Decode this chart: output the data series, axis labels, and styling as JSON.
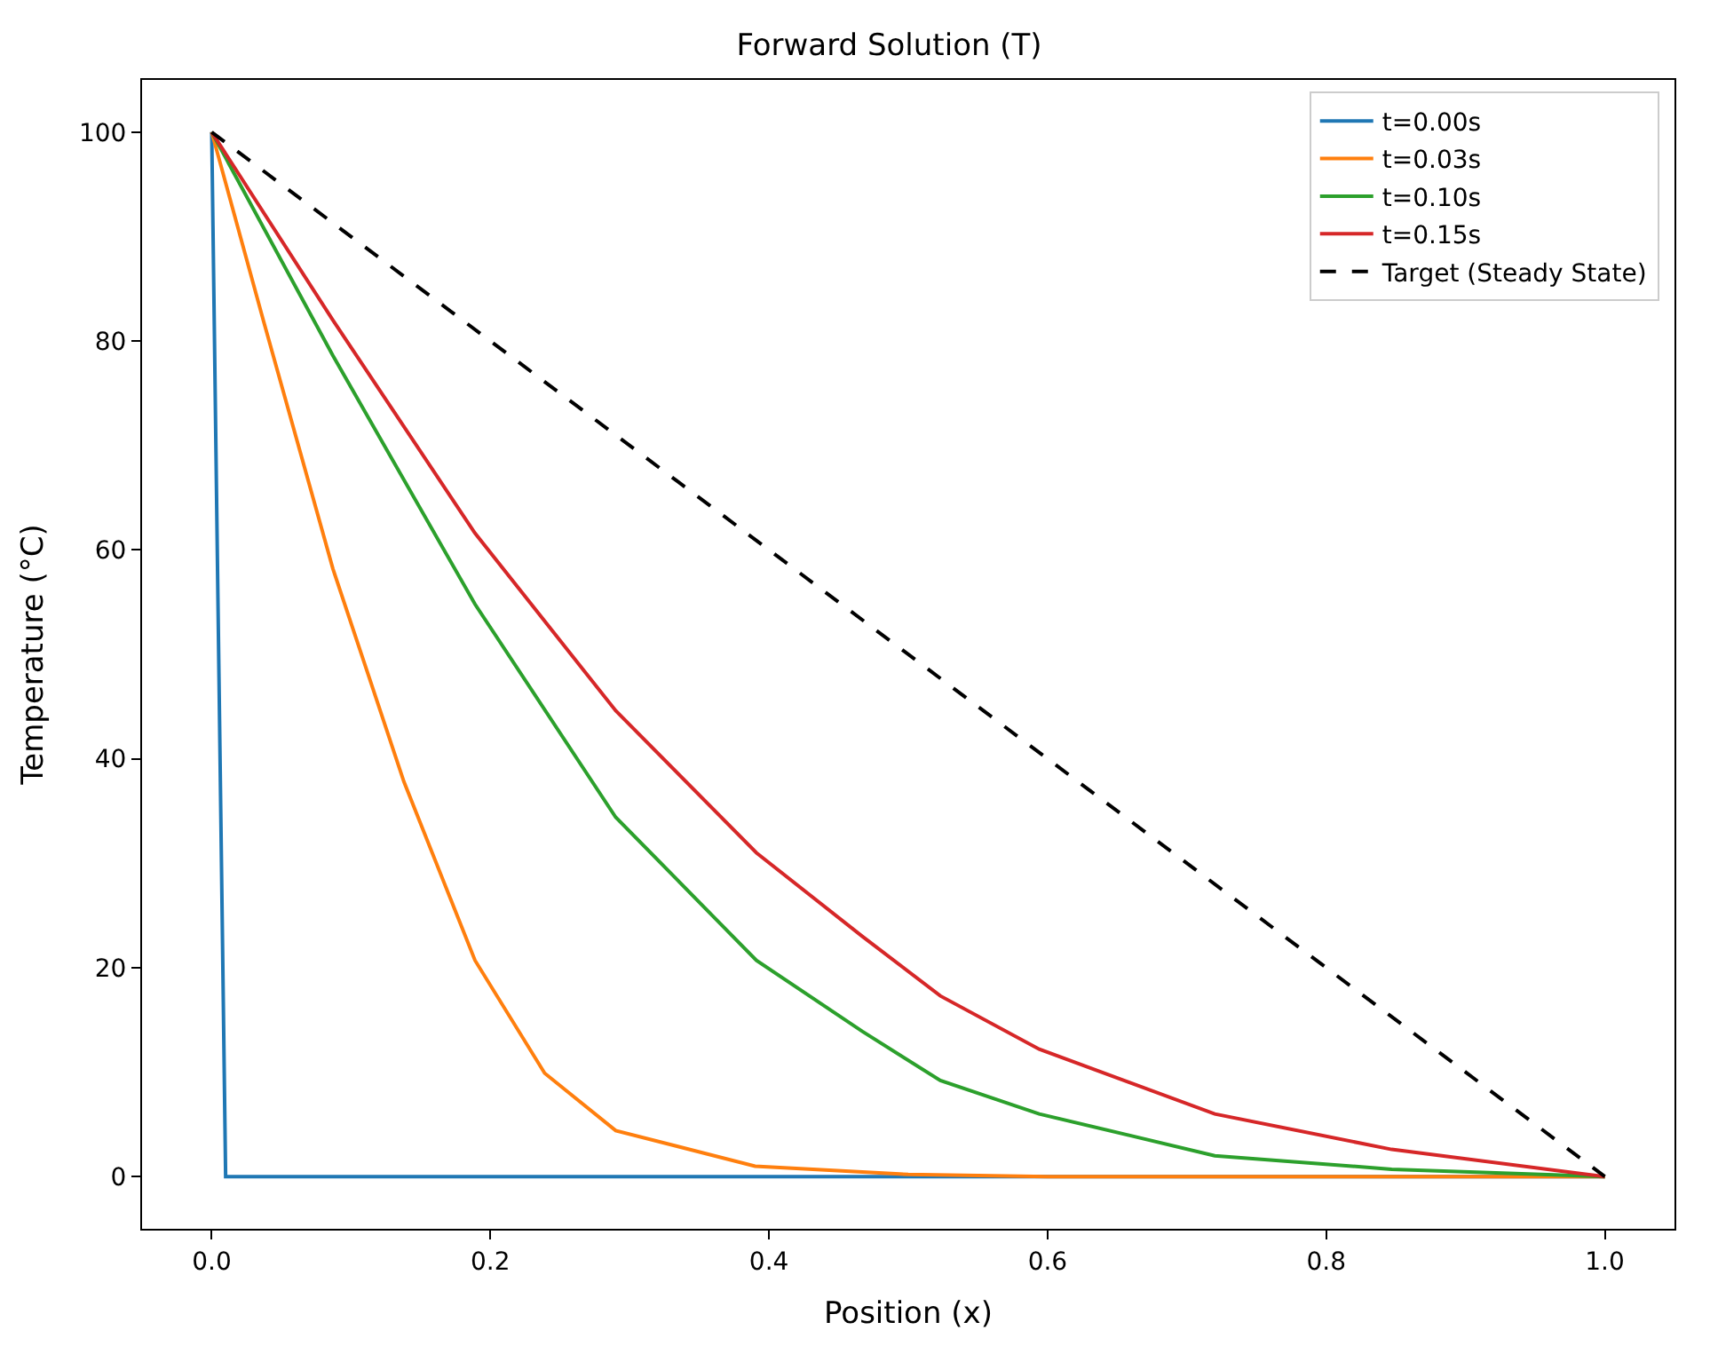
{
  "chart_data": {
    "type": "line",
    "title": "Forward Solution (T)",
    "xlabel": "Position (x)",
    "ylabel": "Temperature (°C)",
    "xlim": [
      -0.05,
      1.05
    ],
    "xticks": [
      {
        "value": 0,
        "label": "0.0"
      },
      {
        "value": 0.2,
        "label": "0.2"
      },
      {
        "value": 0.4,
        "label": "0.4"
      },
      {
        "value": 0.6,
        "label": "0.6"
      },
      {
        "value": 0.8,
        "label": "0.8"
      },
      {
        "value": 1,
        "label": "1.0"
      }
    ],
    "ylim": [
      -5,
      105
    ],
    "yticks": [
      0,
      20,
      40,
      60,
      80,
      100
    ],
    "legend": "top right",
    "marker": "none",
    "series": [
      {
        "name": "t=0.00s",
        "color": "#1f77b4",
        "line_style": "solid",
        "x": [
          0,
          0.01,
          1
        ],
        "values": [
          100,
          0,
          0
        ]
      },
      {
        "name": "t=0.03s",
        "color": "#ff7f0e",
        "line_style": "solid",
        "x": [
          0,
          0.037,
          0.087,
          0.138,
          0.189,
          0.239,
          0.29,
          0.39,
          0.5,
          0.6,
          1
        ],
        "values": [
          100,
          82,
          58.2,
          37.8,
          20.7,
          9.9,
          4.4,
          1.0,
          0.2,
          0,
          0
        ]
      },
      {
        "name": "t=0.10s",
        "color": "#2ca02c",
        "line_style": "solid",
        "x": [
          0,
          0.087,
          0.189,
          0.29,
          0.391,
          0.467,
          0.523,
          0.594,
          0.72,
          0.847,
          1
        ],
        "values": [
          100,
          78.6,
          54.8,
          34.4,
          20.7,
          13.9,
          9.2,
          6.0,
          2.0,
          0.7,
          0
        ]
      },
      {
        "name": "t=0.15s",
        "color": "#d62728",
        "line_style": "solid",
        "x": [
          0,
          0.087,
          0.189,
          0.29,
          0.391,
          0.467,
          0.523,
          0.594,
          0.72,
          0.847,
          1
        ],
        "values": [
          100,
          82,
          61.6,
          44.6,
          31,
          23,
          17.3,
          12.2,
          6.0,
          2.6,
          0
        ]
      },
      {
        "name": "Target (Steady State)",
        "color": "#000000",
        "line_style": "dashed",
        "x": [
          0,
          1
        ],
        "values": [
          100,
          0
        ]
      }
    ]
  }
}
